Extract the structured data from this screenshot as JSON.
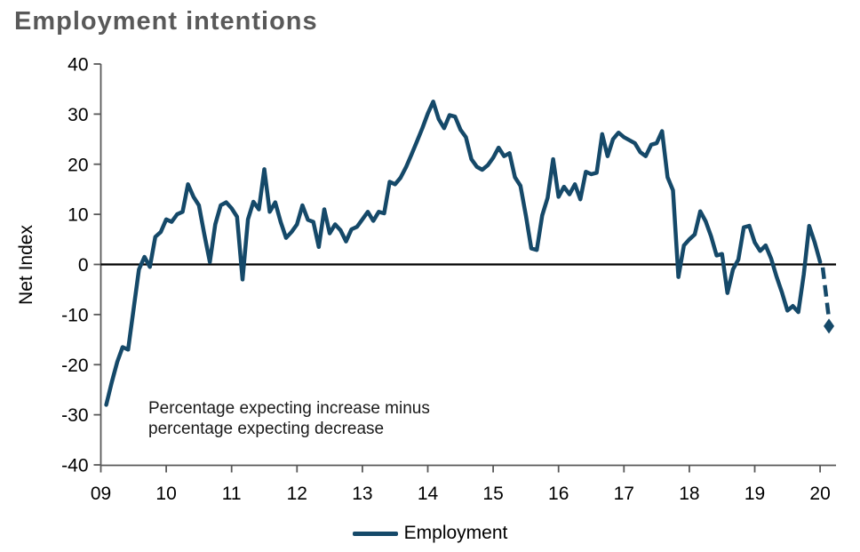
{
  "title": "Employment intentions",
  "chart_data": {
    "type": "line",
    "title": "Employment intentions",
    "xlabel": "",
    "ylabel": "Net Index",
    "ylim": [
      -40,
      40
    ],
    "grid": false,
    "zero_line": true,
    "legend_position": "bottom-center",
    "line_color": "#154969",
    "axis_color": "#595959",
    "y_ticks": [
      "40",
      "30",
      "20",
      "10",
      "0",
      "-10",
      "-20",
      "-30",
      "-40"
    ],
    "y_tick_values": [
      40,
      30,
      20,
      10,
      0,
      -10,
      -20,
      -30,
      -40
    ],
    "x_ticks": [
      "09",
      "10",
      "11",
      "12",
      "13",
      "14",
      "15",
      "16",
      "17",
      "18",
      "19",
      "20"
    ],
    "annotation": {
      "line1": "Percentage expecting increase minus",
      "line2": "percentage expecting decrease"
    },
    "legend": [
      {
        "label": "Employment",
        "color": "#154969"
      }
    ],
    "series": [
      {
        "name": "Employment",
        "frequency": "monthly",
        "start_year": 2009,
        "start_month": 2,
        "values": [
          -28,
          -23.5,
          -19.5,
          -16.5,
          -17,
          -9,
          -1,
          1.5,
          -0.5,
          5.5,
          6.5,
          9,
          8.5,
          10,
          10.5,
          16,
          13.5,
          11.8,
          6,
          0.5,
          8,
          11.8,
          12.4,
          11.2,
          9.5,
          -3,
          9,
          12.5,
          11,
          19,
          10.5,
          12.4,
          8.5,
          5.3,
          6.5,
          8,
          11.8,
          8.9,
          8.5,
          3.5,
          11,
          6.2,
          8,
          6.8,
          4.6,
          7,
          7.5,
          9,
          10.5,
          8.7,
          10.5,
          10.2,
          16.5,
          16,
          17.3,
          19.4,
          21.9,
          24.5,
          27.2,
          30.1,
          32.5,
          29,
          27.2,
          29.8,
          29.5,
          26.9,
          25.4,
          21,
          19.5,
          18.9,
          19.8,
          21.3,
          23.3,
          21.6,
          22.2,
          17.4,
          15.7,
          9.8,
          3.2,
          2.9,
          9.8,
          13.3,
          21,
          13.5,
          15.5,
          14,
          16,
          13,
          18.5,
          18,
          18.3,
          26,
          21.6,
          25,
          26.3,
          25.4,
          24.8,
          24.2,
          22.4,
          21.6,
          23.9,
          24.2,
          26.6,
          17.4,
          14.8,
          -2.5,
          3.8,
          5,
          6,
          10.6,
          8.6,
          5.6,
          1.8,
          2.1,
          -5.7,
          -1,
          1,
          7.4,
          7.7,
          4.4,
          2.7,
          3.8,
          1.2,
          -2.4,
          -5.6,
          -9.2,
          -8.3,
          -9.5,
          -2,
          7.7,
          4.4,
          0.5
        ]
      }
    ],
    "dashed_projection": {
      "from": [
        2020.04,
        -0.6
      ],
      "to": [
        2020.13,
        -10.3
      ]
    },
    "end_marker": {
      "x": 2020.135,
      "value": -12.3,
      "shape": "diamond"
    }
  }
}
